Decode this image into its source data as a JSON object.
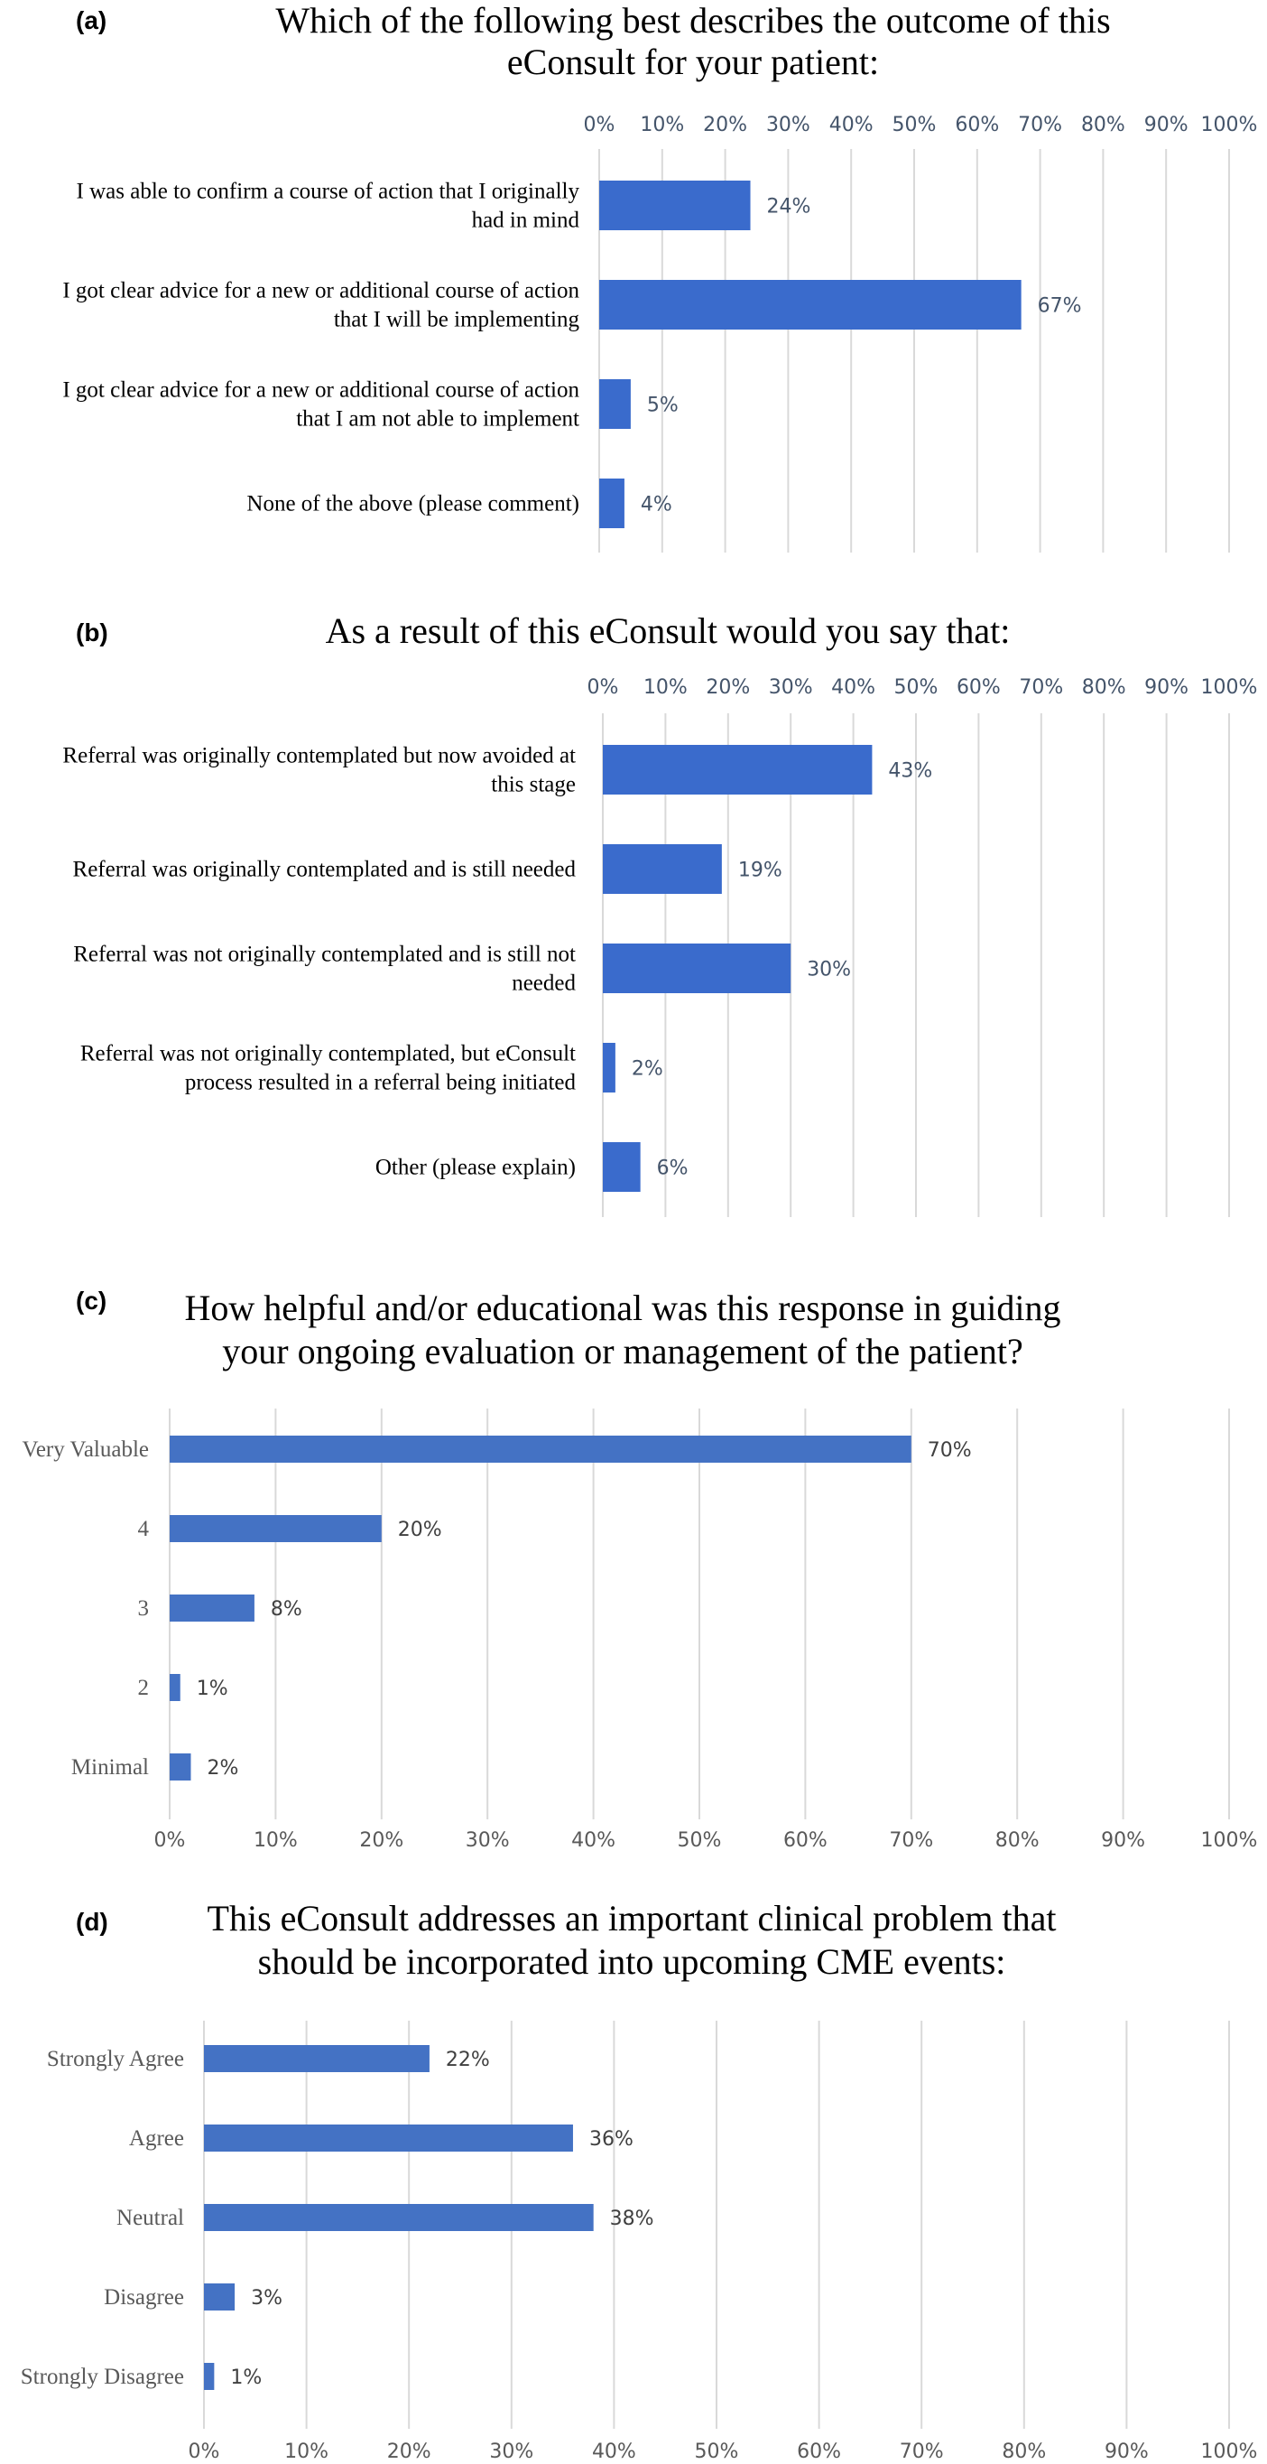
{
  "chart_data": [
    {
      "panel": "(a)",
      "type": "bar",
      "orientation": "horizontal",
      "title_lines": [
        "Which of the following best describes the outcome of this",
        "eConsult for your patient:"
      ],
      "categories": [
        [
          "I was able to confirm a course of action that I originally",
          "had in mind"
        ],
        [
          "I got clear advice for a new or additional course of action",
          "that I will be implementing"
        ],
        [
          "I got clear advice for a new or additional course of action",
          "that I am not able to implement"
        ],
        [
          "None of the above (please comment)"
        ]
      ],
      "values": [
        24,
        67,
        5,
        4
      ],
      "data_labels": [
        "24%",
        "67%",
        "5%",
        "4%"
      ],
      "xticks": [
        "0%",
        "10%",
        "20%",
        "30%",
        "40%",
        "50%",
        "60%",
        "70%",
        "80%",
        "90%",
        "100%"
      ],
      "xlim": [
        0,
        100
      ],
      "axis_position": "top",
      "grid": true,
      "bar_color": "#3a6bcc"
    },
    {
      "panel": "(b)",
      "type": "bar",
      "orientation": "horizontal",
      "title_lines": [
        "As a result of this eConsult would you say that:"
      ],
      "categories": [
        [
          "Referral was originally contemplated but now avoided at",
          "this stage"
        ],
        [
          "Referral was originally contemplated and is still needed"
        ],
        [
          "Referral was not originally contemplated and is still not",
          "needed"
        ],
        [
          "Referral was not originally contemplated, but eConsult",
          "process resulted in a referral being initiated"
        ],
        [
          "Other (please explain)"
        ]
      ],
      "values": [
        43,
        19,
        30,
        2,
        6
      ],
      "data_labels": [
        "43%",
        "19%",
        "30%",
        "2%",
        "6%"
      ],
      "xticks": [
        "0%",
        "10%",
        "20%",
        "30%",
        "40%",
        "50%",
        "60%",
        "70%",
        "80%",
        "90%",
        "100%"
      ],
      "xlim": [
        0,
        100
      ],
      "axis_position": "top",
      "grid": true,
      "bar_color": "#3a6bcc"
    },
    {
      "panel": "(c)",
      "type": "bar",
      "orientation": "horizontal",
      "title_lines": [
        "How helpful and/or educational was this response in guiding",
        "your ongoing evaluation or management of the patient?"
      ],
      "categories": [
        [
          "Very Valuable"
        ],
        [
          "4"
        ],
        [
          "3"
        ],
        [
          "2"
        ],
        [
          "Minimal"
        ]
      ],
      "values": [
        70,
        20,
        8,
        1,
        2
      ],
      "data_labels": [
        "70%",
        "20%",
        "8%",
        "1%",
        "2%"
      ],
      "xticks": [
        "0%",
        "10%",
        "20%",
        "30%",
        "40%",
        "50%",
        "60%",
        "70%",
        "80%",
        "90%",
        "100%"
      ],
      "xlim": [
        0,
        100
      ],
      "axis_position": "bottom",
      "grid": true,
      "bar_color": "#4472c4"
    },
    {
      "panel": "(d)",
      "type": "bar",
      "orientation": "horizontal",
      "title_lines": [
        "This eConsult addresses an important clinical problem that",
        "should be incorporated into upcoming CME events:"
      ],
      "categories": [
        [
          "Strongly Agree"
        ],
        [
          "Agree"
        ],
        [
          "Neutral"
        ],
        [
          "Disagree"
        ],
        [
          "Strongly Disagree"
        ]
      ],
      "values": [
        22,
        36,
        38,
        3,
        1
      ],
      "data_labels": [
        "22%",
        "36%",
        "38%",
        "3%",
        "1%"
      ],
      "xticks": [
        "0%",
        "10%",
        "20%",
        "30%",
        "40%",
        "50%",
        "60%",
        "70%",
        "80%",
        "90%",
        "100%"
      ],
      "xlim": [
        0,
        100
      ],
      "axis_position": "bottom",
      "grid": true,
      "bar_color": "#4472c4"
    }
  ]
}
